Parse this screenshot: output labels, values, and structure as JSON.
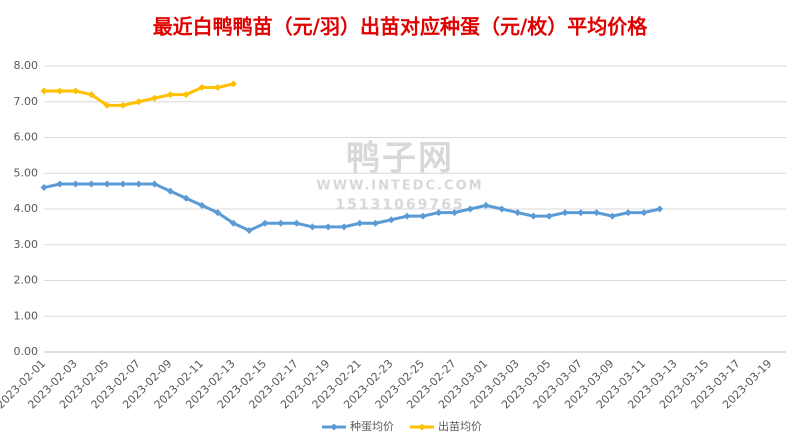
{
  "chart_data": {
    "type": "line",
    "title": "最近白鸭鸭苗（元/羽）出苗对应种蛋（元/枚）平均价格",
    "watermark": [
      "鸭子网",
      "WWW.INTEDC.COM",
      "15131069765"
    ],
    "categories": [
      "2023-02-01",
      null,
      "2023-02-03",
      null,
      "2023-02-05",
      null,
      "2023-02-07",
      null,
      "2023-02-09",
      null,
      "2023-02-11",
      null,
      "2023-02-13",
      null,
      "2023-02-15",
      null,
      "2023-02-17",
      null,
      "2023-02-19",
      null,
      "2023-02-21",
      null,
      "2023-02-23",
      null,
      "2023-02-25",
      null,
      "2023-02-27",
      null,
      "2023-03-01",
      null,
      "2023-03-03",
      null,
      "2023-03-05",
      null,
      "2023-03-07",
      null,
      "2023-03-09",
      null,
      "2023-03-11",
      null,
      "2023-03-13",
      null,
      "2023-03-15",
      null,
      "2023-03-17",
      null,
      "2023-03-19",
      null
    ],
    "series": [
      {
        "name": "种蛋均价",
        "color": "#5b9bd5",
        "values": [
          4.6,
          4.7,
          4.7,
          4.7,
          4.7,
          4.7,
          4.7,
          4.7,
          4.5,
          4.3,
          4.1,
          3.9,
          3.6,
          3.4,
          3.6,
          3.6,
          3.6,
          3.5,
          3.5,
          3.5,
          3.6,
          3.6,
          3.7,
          3.8,
          3.8,
          3.9,
          3.9,
          4.0,
          4.1,
          4.0,
          3.9,
          3.8,
          3.8,
          3.9,
          3.9,
          3.9,
          3.8,
          3.9,
          3.9,
          4.0,
          null,
          null,
          null,
          null,
          null,
          null,
          null,
          null
        ]
      },
      {
        "name": "出苗均价",
        "color": "#ffc000",
        "values": [
          7.3,
          7.3,
          7.3,
          7.2,
          6.9,
          6.9,
          7.0,
          7.1,
          7.2,
          7.2,
          7.4,
          7.4,
          7.5,
          null,
          null,
          null,
          null,
          null,
          null,
          null,
          null,
          null,
          null,
          null,
          null,
          null,
          null,
          null,
          null,
          null,
          null,
          null,
          null,
          null,
          null,
          null,
          null,
          null,
          null,
          null,
          null,
          null,
          null,
          null,
          null,
          null,
          null,
          null
        ]
      }
    ],
    "ylim": [
      0,
      8
    ],
    "yticks": [
      {
        "value": 0,
        "label": "0.00"
      },
      {
        "value": 1,
        "label": "1.00"
      },
      {
        "value": 2,
        "label": "2.00"
      },
      {
        "value": 3,
        "label": "3.00"
      },
      {
        "value": 4,
        "label": "4.00"
      },
      {
        "value": 5,
        "label": "5.00"
      },
      {
        "value": 6,
        "label": "6.00"
      },
      {
        "value": 7,
        "label": "7.00"
      },
      {
        "value": 8,
        "label": "8.00"
      }
    ],
    "grid": true,
    "legend": "bottom"
  }
}
